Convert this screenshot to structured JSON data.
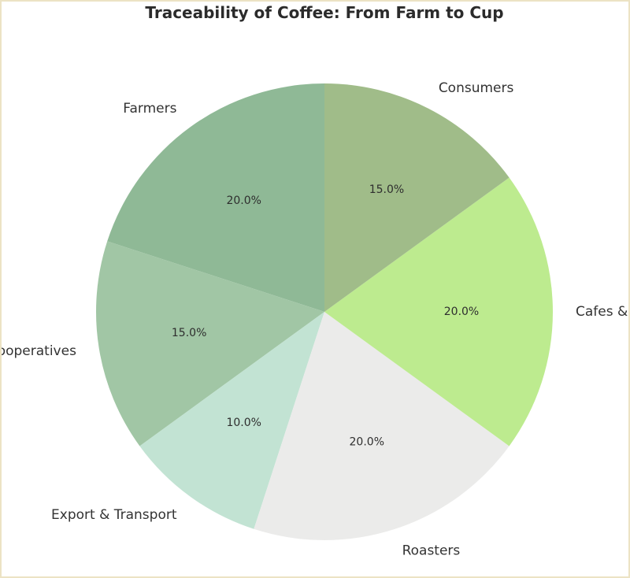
{
  "chart_data": {
    "type": "pie",
    "title": "Traceability of Coffee: From Farm to Cup",
    "start_angle_deg": 90,
    "direction": "counterclockwise",
    "slices": [
      {
        "label": "Farmers",
        "value": 20.0,
        "pct_label": "20.0%",
        "color": "#8fb996"
      },
      {
        "label": "Cooperatives",
        "value": 15.0,
        "pct_label": "15.0%",
        "color": "#a1c6a5"
      },
      {
        "label": "Export & Transport",
        "value": 10.0,
        "pct_label": "10.0%",
        "color": "#c2e3d3"
      },
      {
        "label": "Roasters",
        "value": 20.0,
        "pct_label": "20.0%",
        "color": "#ebebea"
      },
      {
        "label": "Cafes & Retailers",
        "value": 20.0,
        "pct_label": "20.0%",
        "color": "#bdeb8f"
      },
      {
        "label": "Consumers",
        "value": 15.0,
        "pct_label": "15.0%",
        "color": "#a0bc89"
      }
    ]
  }
}
